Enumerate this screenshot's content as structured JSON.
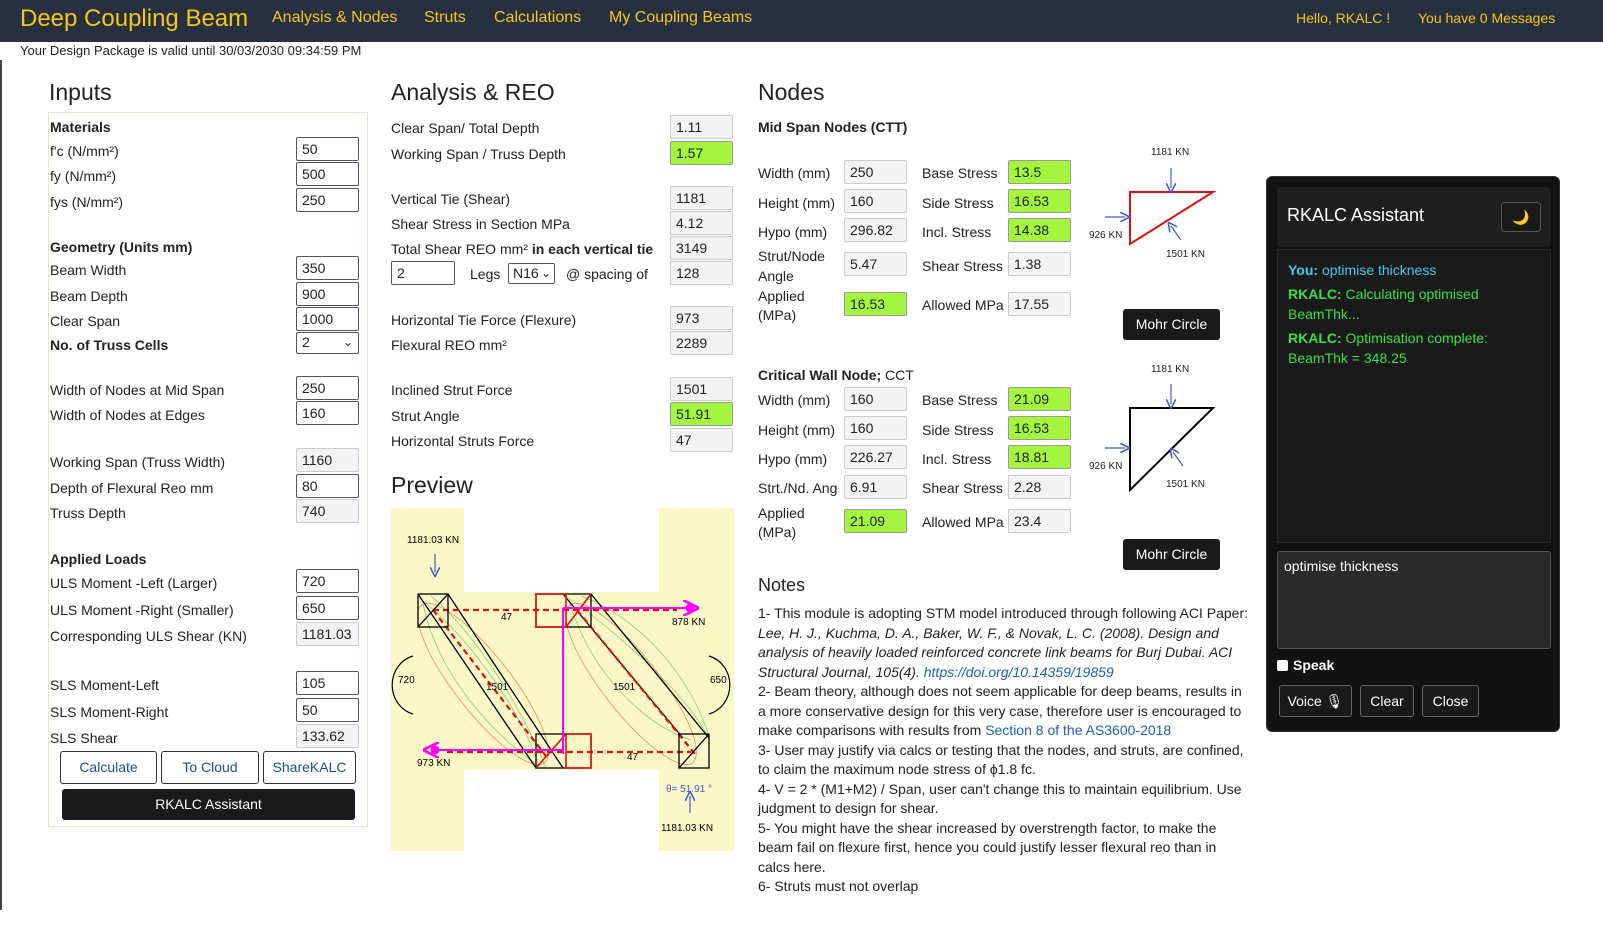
{
  "nav": {
    "brand": "Deep Coupling Beam",
    "items": [
      "Analysis & Nodes",
      "Struts",
      "Calculations",
      "My Coupling Beams"
    ],
    "hello": "Hello, RKALC !",
    "messages": "You have 0 Messages"
  },
  "validity": "Your Design Package is valid until 30/03/2030 09:34:59 PM",
  "inputs": {
    "title": "Inputs",
    "materials_heading": "Materials",
    "fc_label": "f'c (N/mm²)",
    "fc": "50",
    "fy_label": "fy (N/mm²)",
    "fy": "500",
    "fys_label": "fys (N/mm²)",
    "fys": "250",
    "geometry_heading": "Geometry (Units mm)",
    "beam_width_label": "Beam Width",
    "beam_width": "350",
    "beam_depth_label": "Beam Depth",
    "beam_depth": "900",
    "clear_span_label": "Clear Span",
    "clear_span": "1000",
    "truss_cells_label": "No. of Truss Cells",
    "truss_cells": "2",
    "nodes_mid_label": "Width of Nodes at Mid Span",
    "nodes_mid": "250",
    "nodes_edge_label": "Width of Nodes at Edges",
    "nodes_edge": "160",
    "working_span_label": "Working Span (Truss Width)",
    "working_span": "1160",
    "flex_depth_label": "Depth of Flexural Reo mm",
    "flex_depth": "80",
    "truss_depth_label": "Truss Depth",
    "truss_depth": "740",
    "loads_heading": "Applied Loads",
    "uls_left_label": "ULS Moment -Left (Larger)",
    "uls_left": "720",
    "uls_right_label": "ULS Moment -Right (Smaller)",
    "uls_right": "650",
    "uls_shear_label": "Corresponding ULS Shear (KN)",
    "uls_shear": "1181.03",
    "sls_left_label": "SLS Moment-Left",
    "sls_left": "105",
    "sls_right_label": "SLS Moment-Right",
    "sls_right": "50",
    "sls_shear_label": "SLS Shear",
    "sls_shear": "133.62",
    "btn_calculate": "Calculate",
    "btn_cloud": "To Cloud",
    "btn_share": "ShareKALC",
    "btn_assistant": "RKALC Assistant"
  },
  "analysis": {
    "title": "Analysis & REO",
    "clear_span_depth_label": "Clear Span/ Total Depth",
    "clear_span_depth": "1.11",
    "working_span_truss_label": "Working Span / Truss Depth",
    "working_span_truss": "1.57",
    "vertical_tie_label": "Vertical Tie (Shear)",
    "vertical_tie": "1181",
    "shear_stress_label": "Shear Stress in Section MPa",
    "shear_stress": "4.12",
    "total_shear_reo_label": "Total Shear REO mm²",
    "total_shear_reo_bold": "in each vertical tie",
    "total_shear_reo": "3149",
    "legs": "2",
    "legs_label": "Legs",
    "bar": "N16",
    "spacing_label": "@ spacing of",
    "spacing": "128",
    "htie_label": "Horizontal Tie Force (Flexure)",
    "htie": "973",
    "flex_reo_label": "Flexural REO mm²",
    "flex_reo": "2289",
    "incl_strut_label": "Inclined Strut Force",
    "incl_strut": "1501",
    "strut_angle_label": "Strut Angle",
    "strut_angle": "51.91",
    "hstruts_label": "Horizontal Struts Force",
    "hstruts": "47"
  },
  "preview": {
    "title": "Preview",
    "top_load": "1181.03 KN",
    "bottom_load": "1181.03 KN",
    "right_tie": "878 KN",
    "left_tie": "973 KN",
    "top_strut": "47",
    "bottom_strut": "47",
    "strut_left": "1501",
    "strut_right": "1501",
    "moment_left": "720",
    "moment_right": "650",
    "theta": "θ= 51.91 °"
  },
  "nodes": {
    "title": "Nodes",
    "mid_heading": "Mid Span Nodes (CTT)",
    "mid": {
      "width_label": "Width (mm)",
      "width": "250",
      "height_label": "Height (mm)",
      "height": "160",
      "hypo_label": "Hypo (mm)",
      "hypo": "296.82",
      "angle_label_1": "Strut/Node",
      "angle_label_2": "Angle",
      "angle": "5.47",
      "applied_label_1": "Applied",
      "applied_label_2": "(MPa)",
      "applied": "16.53",
      "base_label": "Base Stress",
      "base": "13.5",
      "side_label": "Side Stress",
      "side": "16.53",
      "incl_label": "Incl. Stress",
      "incl": "14.38",
      "shear_label": "Shear Stress",
      "shear": "1.38",
      "allowed_label": "Allowed MPa",
      "allowed": "17.55",
      "diag_top": "1181 KN",
      "diag_left": "926 KN",
      "diag_right": "1501 KN",
      "mohr": "Mohr Circle"
    },
    "wall_heading": "Critical Wall Node;",
    "wall_heading_suffix": " CCT",
    "wall": {
      "width_label": "Width (mm)",
      "width": "160",
      "height_label": "Height (mm)",
      "height": "160",
      "hypo_label": "Hypo (mm)",
      "hypo": "226.27",
      "angle_label": "Strt./Nd. Ang",
      "angle": "6.91",
      "applied_label_1": "Applied",
      "applied_label_2": "(MPa)",
      "applied": "21.09",
      "base_label": "Base Stress",
      "base": "21.09",
      "side_label": "Side Stress",
      "side": "16.53",
      "incl_label": "Incl. Stress",
      "incl": "18.81",
      "shear_label": "Shear Stress",
      "shear": "2.28",
      "allowed_label": "Allowed MPa",
      "allowed": "23.4",
      "diag_top": "1181 KN",
      "diag_left": "926 KN",
      "diag_right": "1501 KN",
      "mohr": "Mohr Circle"
    }
  },
  "notes": {
    "title": "Notes",
    "n1_a": "1- This module is adopting STM model introduced through following ACI Paper: ",
    "n1_it": "Lee, H. J., Kuchma, D. A., Baker, W. F., & Novak, L. C. (2008). Design and analysis of heavily loaded reinforced concrete link beams for Burj Dubai. ACI Structural Journal, 105(4). ",
    "n1_link": "https://doi.org/10.14359/19859",
    "n2_a": "2- Beam theory, although does not seem applicable for deep beams, results in a more conservative design for this very case, therefore user is encouraged to make comparisons with results from ",
    "n2_link": "Section 8 of the AS3600-2018",
    "n3": "3- User may justify via calcs or testing that the nodes, and struts, are confined, to claim the maximum node stress of ϕ1.8 fc.",
    "n4": "4- V = 2 * (M1+M2) / Span, user can't change this to maintain equilibrium. Use judgment to design for shear.",
    "n5": "5- You might have the shear increased by overstrength factor, to make the beam fail on flexure first, hence you could justify lesser flexural reo than in calcs here.",
    "n6": "6- Struts must not overlap"
  },
  "assistant": {
    "title": "RKALC Assistant",
    "moon": "🌙",
    "m1_who": "You:",
    "m1_text": " optimise thickness",
    "m2_who": "RKALC:",
    "m2_text": " Calculating optimised BeamThk...",
    "m3_who": "RKALC:",
    "m3_text": " Optimisation complete: BeamThk = 348.25",
    "textarea": "optimise thickness",
    "speak": "Speak",
    "voice": "Voice 🎙",
    "clear": "Clear",
    "close": "Close"
  },
  "colors": {
    "nav_bg": "#27303f",
    "nav_text": "#f5c518",
    "highlight": "#a3f53e",
    "tie": "#ff00ff",
    "node": "#ff0000"
  }
}
